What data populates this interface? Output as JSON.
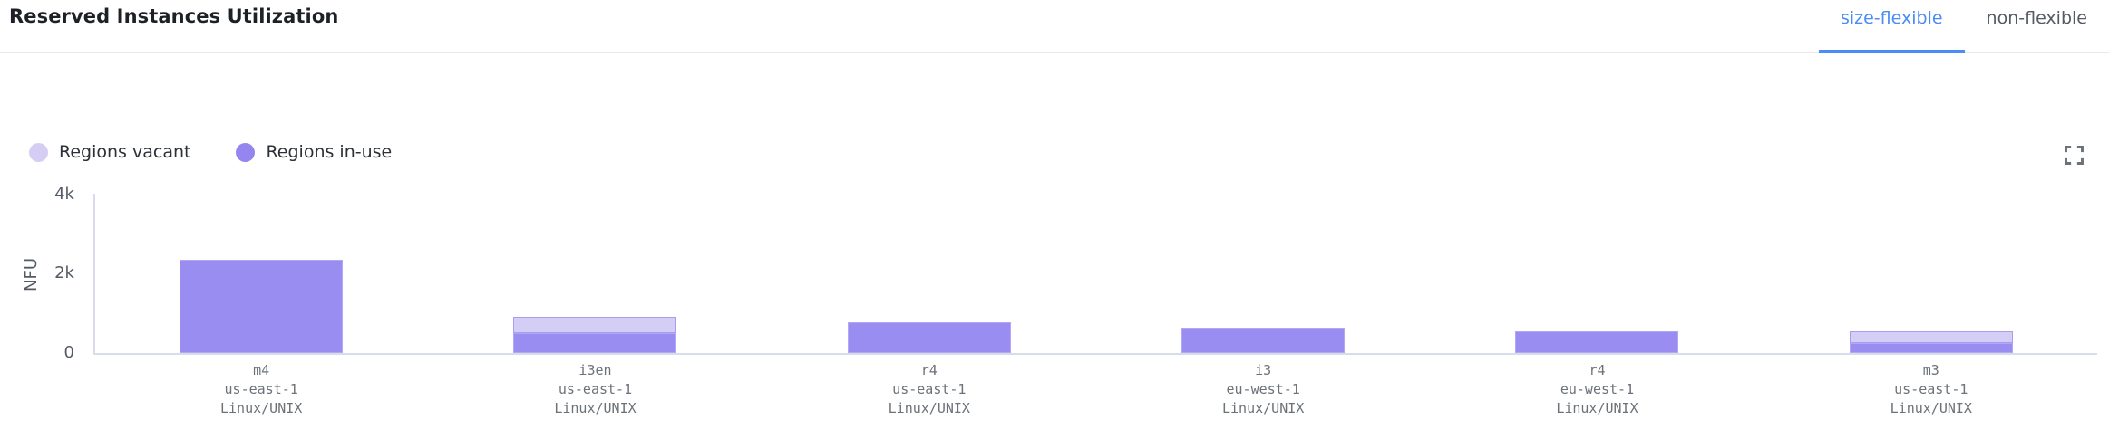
{
  "header": {
    "title": "Reserved Instances Utilization",
    "tabs": [
      {
        "label": "size-flexible",
        "active": true
      },
      {
        "label": "non-flexible",
        "active": false
      }
    ]
  },
  "toolbar": {
    "expand_icon": "fullscreen-expand-icon"
  },
  "legend": {
    "items": [
      {
        "label": "Regions vacant",
        "color": "#d5cdf4"
      },
      {
        "label": "Regions in-use",
        "color": "#9486ee"
      }
    ]
  },
  "colors": {
    "accent_blue": "#4a8df5",
    "in_use_fill": "#998df2",
    "in_use_border": "#b2a7f5",
    "vacant_fill": "#d4cdf5",
    "vacant_border": "#a89df0",
    "axis_line": "#d9dce9"
  },
  "chart_data": {
    "type": "bar",
    "stacked": true,
    "title": "Reserved Instances Utilization",
    "xlabel": "",
    "ylabel": "NFU",
    "ylim": [
      0,
      4000
    ],
    "grid": false,
    "legend_position": "top-left",
    "yticks": [
      {
        "value": 0,
        "label": "0"
      },
      {
        "value": 2000,
        "label": "2k"
      },
      {
        "value": 4000,
        "label": "4k"
      }
    ],
    "categories": [
      {
        "instance_type": "m4",
        "region": "us-east-1",
        "platform": "Linux/UNIX"
      },
      {
        "instance_type": "i3en",
        "region": "us-east-1",
        "platform": "Linux/UNIX"
      },
      {
        "instance_type": "r4",
        "region": "us-east-1",
        "platform": "Linux/UNIX"
      },
      {
        "instance_type": "i3",
        "region": "eu-west-1",
        "platform": "Linux/UNIX"
      },
      {
        "instance_type": "r4",
        "region": "eu-west-1",
        "platform": "Linux/UNIX"
      },
      {
        "instance_type": "m3",
        "region": "us-east-1",
        "platform": "Linux/UNIX"
      }
    ],
    "series": [
      {
        "name": "Regions in-use",
        "values": [
          2350,
          500,
          775,
          650,
          550,
          250
        ],
        "color": "#998df2",
        "border_color": "#b2a7f5"
      },
      {
        "name": "Regions vacant",
        "values": [
          0,
          400,
          0,
          0,
          0,
          300
        ],
        "color": "#d4cdf5",
        "border_color": "#a89df0"
      }
    ]
  }
}
